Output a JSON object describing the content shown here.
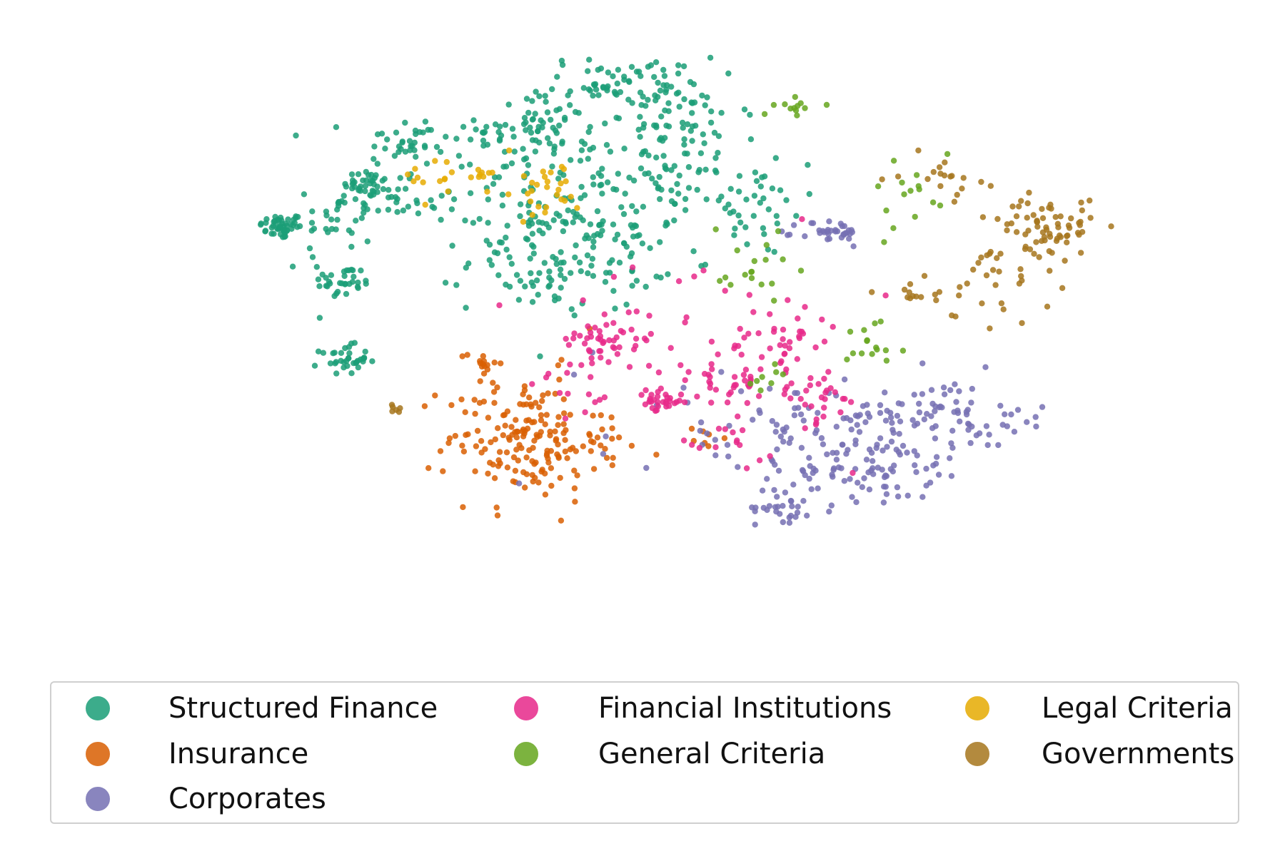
{
  "chart_data": {
    "type": "scatter",
    "title": "",
    "xlabel": "",
    "ylabel": "",
    "axes_visible": false,
    "grid": false,
    "legend_placement": "bottom",
    "xlim": [
      -60,
      60
    ],
    "ylim": [
      -45,
      35
    ],
    "series": [
      {
        "name": "Structured Finance",
        "color": "#1b9e77",
        "clusters": [
          {
            "center": [
              -46,
              10
            ],
            "spread": [
              1.4,
              0.9
            ],
            "count": 45
          },
          {
            "center": [
              -35,
              16
            ],
            "spread": [
              1.5,
              1.0
            ],
            "count": 35
          },
          {
            "center": [
              -30,
              22
            ],
            "spread": [
              3.5,
              1.8
            ],
            "count": 40
          },
          {
            "center": [
              -40,
              9
            ],
            "spread": [
              4.0,
              4.0
            ],
            "count": 30
          },
          {
            "center": [
              -38,
              2
            ],
            "spread": [
              2.0,
              1.2
            ],
            "count": 30
          },
          {
            "center": [
              -32,
              13
            ],
            "spread": [
              4.5,
              1.5
            ],
            "count": 40
          },
          {
            "center": [
              -38,
              -9
            ],
            "spread": [
              1.5,
              1.0
            ],
            "count": 35
          },
          {
            "center": [
              -14,
              24
            ],
            "spread": [
              3.5,
              2.2
            ],
            "count": 60
          },
          {
            "center": [
              -2,
              30
            ],
            "spread": [
              5.5,
              2.0
            ],
            "count": 80
          },
          {
            "center": [
              -15,
              18
            ],
            "spread": [
              7.0,
              3.0
            ],
            "count": 50
          },
          {
            "center": [
              5,
              23
            ],
            "spread": [
              5.0,
              3.0
            ],
            "count": 60
          },
          {
            "center": [
              3,
              16
            ],
            "spread": [
              6.0,
              2.0
            ],
            "count": 50
          },
          {
            "center": [
              -10,
              5
            ],
            "spread": [
              6.0,
              3.5
            ],
            "count": 100
          },
          {
            "center": [
              -14,
              10
            ],
            "spread": [
              3.0,
              2.5
            ],
            "count": 35
          },
          {
            "center": [
              14,
              12
            ],
            "spread": [
              4.0,
              3.5
            ],
            "count": 35
          },
          {
            "center": [
              -3,
              10
            ],
            "spread": [
              5.0,
              4.0
            ],
            "count": 40
          }
        ]
      },
      {
        "name": "Insurance",
        "color": "#d95f02",
        "clusters": [
          {
            "center": [
              -15,
              -20
            ],
            "spread": [
              5.0,
              4.5
            ],
            "count": 170
          },
          {
            "center": [
              -20,
              -9
            ],
            "spread": [
              1.8,
              0.8
            ],
            "count": 12
          },
          {
            "center": [
              -6,
              -22
            ],
            "spread": [
              3.5,
              2.0
            ],
            "count": 15
          },
          {
            "center": [
              7,
              -20
            ],
            "spread": [
              1.5,
              0.7
            ],
            "count": 7
          }
        ]
      },
      {
        "name": "Corporates",
        "color": "#7570b3",
        "clusters": [
          {
            "center": [
              24,
              9
            ],
            "spread": [
              2.0,
              1.0
            ],
            "count": 35
          },
          {
            "center": [
              28,
              -22
            ],
            "spread": [
              7.0,
              4.0
            ],
            "count": 150
          },
          {
            "center": [
              18,
              -30
            ],
            "spread": [
              1.8,
              1.0
            ],
            "count": 25
          },
          {
            "center": [
              38,
              -16
            ],
            "spread": [
              4.0,
              3.0
            ],
            "count": 40
          },
          {
            "center": [
              46,
              -18
            ],
            "spread": [
              2.5,
              1.5
            ],
            "count": 20
          },
          {
            "center": [
              10,
              -16
            ],
            "spread": [
              8.0,
              5.0
            ],
            "count": 30
          }
        ]
      },
      {
        "name": "Financial Institutions",
        "color": "#e7298a",
        "clusters": [
          {
            "center": [
              -4,
              -6
            ],
            "spread": [
              3.0,
              1.5
            ],
            "count": 45
          },
          {
            "center": [
              2,
              -15
            ],
            "spread": [
              1.5,
              0.8
            ],
            "count": 30
          },
          {
            "center": [
              11,
              -12
            ],
            "spread": [
              4.0,
              2.0
            ],
            "count": 40
          },
          {
            "center": [
              22,
              -14
            ],
            "spread": [
              3.0,
              2.0
            ],
            "count": 30
          },
          {
            "center": [
              18,
              -6
            ],
            "spread": [
              3.5,
              2.5
            ],
            "count": 30
          },
          {
            "center": [
              -8,
              -12
            ],
            "spread": [
              3.0,
              3.0
            ],
            "count": 15
          },
          {
            "center": [
              6,
              -2
            ],
            "spread": [
              10.0,
              8.0
            ],
            "count": 25
          },
          {
            "center": [
              10,
              -21
            ],
            "spread": [
              3.5,
              1.5
            ],
            "count": 15
          }
        ]
      },
      {
        "name": "General Criteria",
        "color": "#66a61e",
        "clusters": [
          {
            "center": [
              20,
              27
            ],
            "spread": [
              1.5,
              0.6
            ],
            "count": 12
          },
          {
            "center": [
              30,
              -6
            ],
            "spread": [
              2.0,
              2.0
            ],
            "count": 15
          },
          {
            "center": [
              13,
              4
            ],
            "spread": [
              2.5,
              4.0
            ],
            "count": 18
          },
          {
            "center": [
              16,
              -12
            ],
            "spread": [
              1.5,
              1.0
            ],
            "count": 8
          },
          {
            "center": [
              35,
              13
            ],
            "spread": [
              4.0,
              4.0
            ],
            "count": 15
          }
        ]
      },
      {
        "name": "Legal Criteria",
        "color": "#e6ab02",
        "clusters": [
          {
            "center": [
              -23,
              17
            ],
            "spread": [
              4.0,
              1.5
            ],
            "count": 25
          },
          {
            "center": [
              -12,
              15
            ],
            "spread": [
              2.0,
              2.0
            ],
            "count": 25
          }
        ]
      },
      {
        "name": "Governments",
        "color": "#a6761d",
        "clusters": [
          {
            "center": [
              52,
              10
            ],
            "spread": [
              3.0,
              2.0
            ],
            "count": 60
          },
          {
            "center": [
              46,
              4
            ],
            "spread": [
              3.5,
              4.0
            ],
            "count": 35
          },
          {
            "center": [
              38,
              17
            ],
            "spread": [
              2.5,
              1.5
            ],
            "count": 18
          },
          {
            "center": [
              35,
              1
            ],
            "spread": [
              3.0,
              1.5
            ],
            "count": 15
          },
          {
            "center": [
              -31,
              -16
            ],
            "spread": [
              0.6,
              0.4
            ],
            "count": 6
          }
        ]
      }
    ],
    "other_color": "#555555"
  },
  "legend": {
    "columns": [
      [
        "Structured Finance",
        "Insurance",
        "Corporates"
      ],
      [
        "Financial Institutions",
        "General Criteria"
      ],
      [
        "Legal Criteria",
        "Governments"
      ]
    ]
  }
}
